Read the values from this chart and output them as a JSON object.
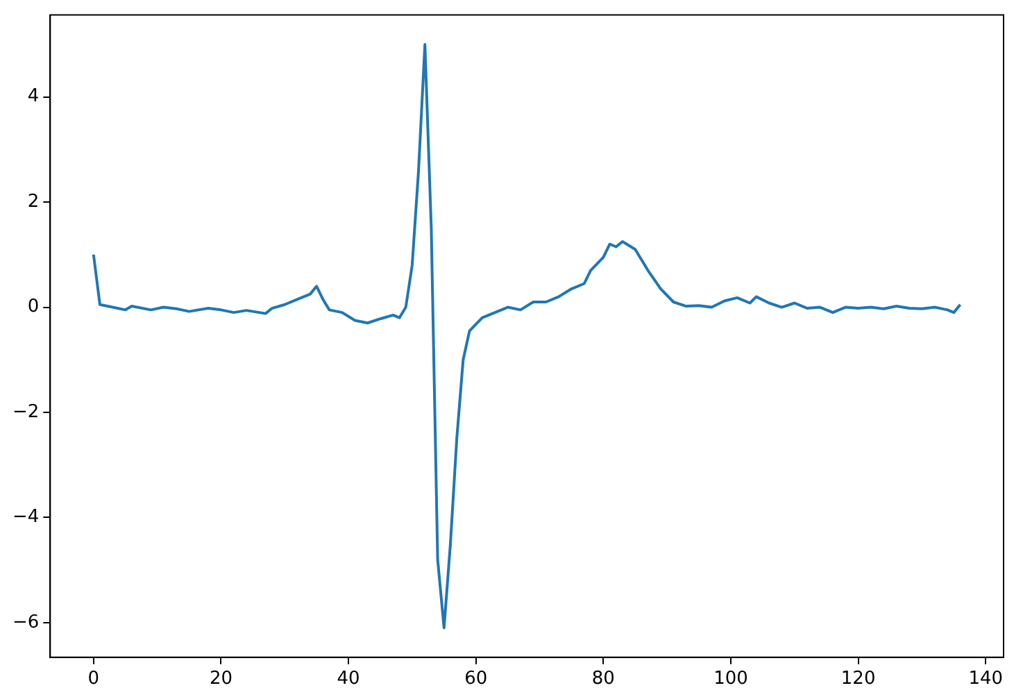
{
  "chart_data": {
    "type": "line",
    "x": [
      0,
      1,
      3,
      5,
      6,
      9,
      11,
      13,
      15,
      18,
      20,
      22,
      24,
      27,
      28,
      30,
      32,
      34,
      35,
      36,
      37,
      39,
      41,
      43,
      45,
      47,
      48,
      49,
      50,
      51,
      52,
      53,
      54,
      55,
      56,
      57,
      58,
      59,
      61,
      63,
      65,
      67,
      69,
      71,
      73,
      75,
      77,
      78,
      80,
      81,
      82,
      83,
      85,
      87,
      89,
      91,
      93,
      95,
      97,
      99,
      101,
      103,
      104,
      106,
      108,
      110,
      112,
      114,
      116,
      118,
      120,
      122,
      124,
      126,
      128,
      130,
      132,
      134,
      135,
      136
    ],
    "series": [
      {
        "color": "#1f77b4",
        "values": [
          1.0,
          0.05,
          0.0,
          -0.05,
          0.02,
          -0.05,
          0.0,
          -0.03,
          -0.08,
          -0.02,
          -0.05,
          -0.1,
          -0.06,
          -0.12,
          -0.02,
          0.05,
          0.15,
          0.25,
          0.4,
          0.15,
          -0.05,
          -0.1,
          -0.25,
          -0.3,
          -0.22,
          -0.15,
          -0.2,
          0.0,
          0.8,
          2.6,
          5.0,
          1.5,
          -4.8,
          -6.1,
          -4.5,
          -2.5,
          -1.0,
          -0.45,
          -0.2,
          -0.1,
          0.0,
          -0.05,
          0.1,
          0.1,
          0.2,
          0.35,
          0.45,
          0.7,
          0.95,
          1.2,
          1.15,
          1.25,
          1.1,
          0.7,
          0.35,
          0.1,
          0.02,
          0.03,
          0.0,
          0.12,
          0.18,
          0.08,
          0.2,
          0.08,
          0.0,
          0.08,
          -0.02,
          0.0,
          -0.1,
          0.0,
          -0.02,
          0.0,
          -0.03,
          0.02,
          -0.02,
          -0.03,
          0.0,
          -0.05,
          -0.1,
          0.05
        ]
      }
    ],
    "xlim": [
      -6.8,
      142.8
    ],
    "ylim": [
      -6.66,
      5.56
    ],
    "xticks": [
      0,
      20,
      40,
      60,
      80,
      100,
      120,
      140
    ],
    "yticks": [
      -6,
      -4,
      -2,
      0,
      2,
      4
    ],
    "grid": false,
    "legend": false,
    "marker": "none",
    "line_style": "solid"
  }
}
